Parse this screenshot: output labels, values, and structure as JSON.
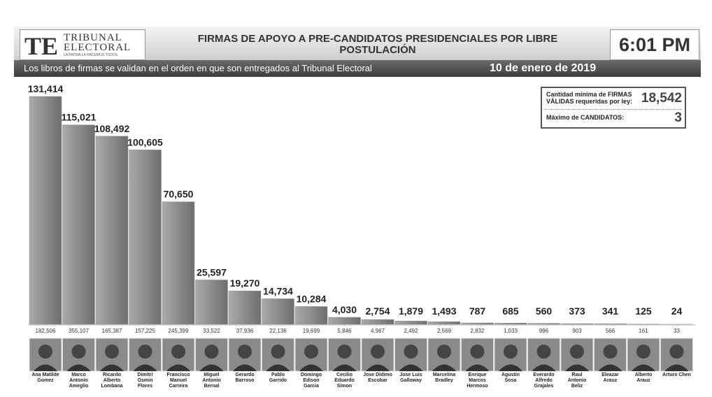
{
  "header": {
    "logo_main": "TRIBUNAL\nELECTORAL",
    "logo_initials": "TE",
    "logo_motto": "LA PATRIA LA HACEMOS TODOS",
    "time": "6:01 PM"
  },
  "chart_data": {
    "type": "bar",
    "title": "FIRMAS DE APOYO A PRE-CANDIDATOS PRESIDENCIALES POR LIBRE POSTULACIÓN",
    "subtitle": "Los libros de firmas se validan en el orden en que son entregados al Tribunal Electoral",
    "date": "10 de enero de 2019",
    "categories": [
      "Ana Matilde\nGomez",
      "Marco\nAntonio\nAmeglio",
      "Ricardo\nAlberto\nLombana",
      "Dimitri\nOsmin\nFlores",
      "Francisco\nManuel\nCarreira",
      "Miguel\nAntonio\nBernal",
      "Gerardo\nBarroso",
      "Pablo\nGarrido",
      "Domingo\nEdison\nGarcia",
      "Cecilio\nEduardo\nSimon",
      "Jose Didimo\nEscobar",
      "Jose Luis\nGalloway",
      "Marcelina\nBradley",
      "Enrique\nMarcos\nHermoso",
      "Agustin\nSosa",
      "Everardo\nAlfredo\nGrajales",
      "Raul\nAntonio\nBeliz",
      "Eleazar\nArauz",
      "Alberto\nArauz",
      "Arturo Chen"
    ],
    "values": [
      131414,
      115021,
      108492,
      100605,
      70650,
      25597,
      19270,
      14734,
      10284,
      4030,
      2754,
      1879,
      1493,
      787,
      685,
      560,
      373,
      341,
      125,
      24
    ],
    "value_labels": [
      "131,414",
      "115,021",
      "108,492",
      "100,605",
      "70,650",
      "25,597",
      "19,270",
      "14,734",
      "10,284",
      "4,030",
      "2,754",
      "1,879",
      "1,493",
      "787",
      "685",
      "560",
      "373",
      "341",
      "125",
      "24"
    ],
    "totals": [
      182506,
      355107,
      165387,
      157225,
      245399,
      33522,
      37936,
      22136,
      19699,
      5846,
      4967,
      2492,
      2569,
      2832,
      1033,
      996,
      903,
      566,
      161,
      33
    ],
    "totals_labels": [
      "182,506",
      "355,107",
      "165,387",
      "157,225",
      "245,399",
      "33,522",
      "37,936",
      "22,136",
      "19,699",
      "5,846",
      "4,967",
      "2,492",
      "2,569",
      "2,832",
      "1,033",
      "996",
      "903",
      "566",
      "161",
      "33"
    ],
    "color": "#8c8c8c",
    "info": [
      {
        "label": "Cantidad mínima de FIRMAS\nVÁLIDAS requeridas por ley:",
        "value": "18,542"
      },
      {
        "label": "Máximo de CANDIDATOS:",
        "value": "3"
      }
    ]
  }
}
